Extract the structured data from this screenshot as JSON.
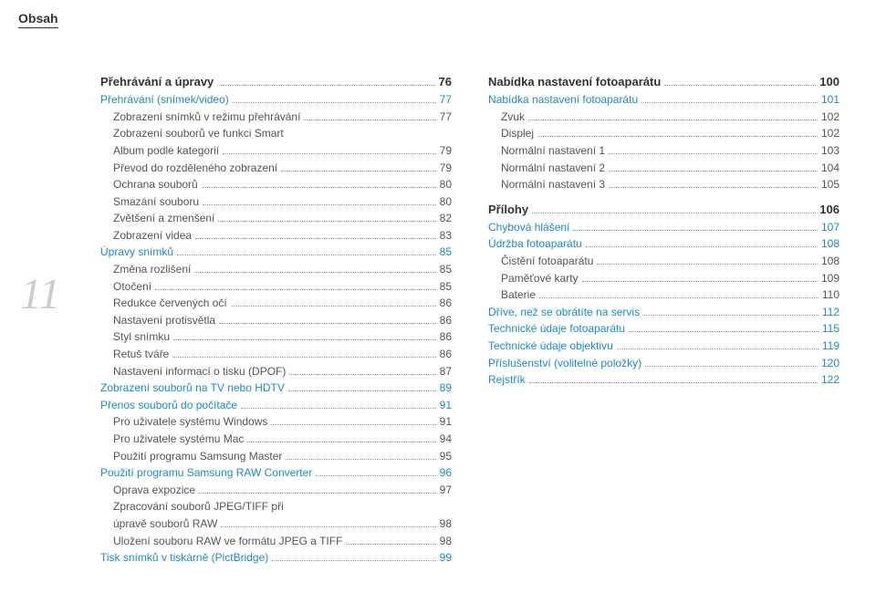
{
  "header": "Obsah",
  "page_number": "11",
  "colors": {
    "header": "#333333",
    "page_number": "#cccccc",
    "level1": "#333333",
    "level2": "#1a8cc8",
    "level3": "#555555",
    "dots": "#999999",
    "background": "#ffffff"
  },
  "left_column": [
    {
      "level": 1,
      "title": "Přehrávání a úpravy",
      "page": "76"
    },
    {
      "level": 2,
      "title": "Přehrávání (snímek/video)",
      "page": "77"
    },
    {
      "level": 3,
      "title": "Zobrazení snímků v režimu přehrávání",
      "page": "77"
    },
    {
      "level": 3,
      "title": "Zobrazení souborů ve funkci Smart",
      "page": ""
    },
    {
      "level": 3,
      "title": "Album podle kategorií",
      "page": "79"
    },
    {
      "level": 3,
      "title": "Převod do rozděleného zobrazení",
      "page": "79"
    },
    {
      "level": 3,
      "title": "Ochrana souborů",
      "page": "80"
    },
    {
      "level": 3,
      "title": "Smazání souboru",
      "page": "80"
    },
    {
      "level": 3,
      "title": "Zvětšení a zmenšení",
      "page": "82"
    },
    {
      "level": 3,
      "title": "Zobrazení videa",
      "page": "83"
    },
    {
      "level": 2,
      "title": "Úpravy snímků",
      "page": "85"
    },
    {
      "level": 3,
      "title": "Změna rozlišení",
      "page": "85"
    },
    {
      "level": 3,
      "title": "Otočení",
      "page": "85"
    },
    {
      "level": 3,
      "title": "Redukce červených očí",
      "page": "86"
    },
    {
      "level": 3,
      "title": "Nastavení protisvětla",
      "page": "86"
    },
    {
      "level": 3,
      "title": "Styl snímku",
      "page": "86"
    },
    {
      "level": 3,
      "title": "Retuš tváře",
      "page": "86"
    },
    {
      "level": 3,
      "title": "Nastavení informací o tisku (DPOF)",
      "page": "87"
    },
    {
      "level": 2,
      "title": "Zobrazení souborů na TV nebo HDTV",
      "page": "89"
    },
    {
      "level": 2,
      "title": "Přenos souborů do počítače",
      "page": "91"
    },
    {
      "level": 3,
      "title": "Pro uživatele systému Windows",
      "page": "91"
    },
    {
      "level": 3,
      "title": "Pro uživatele systému Mac",
      "page": "94"
    },
    {
      "level": 3,
      "title": "Použití programu Samsung Master",
      "page": "95"
    },
    {
      "level": 2,
      "title": "Použití programu Samsung RAW Converter",
      "page": "96"
    },
    {
      "level": 3,
      "title": "Oprava expozice",
      "page": "97"
    },
    {
      "level": 3,
      "title": "Zpracování souborů JPEG/TIFF při",
      "page": ""
    },
    {
      "level": 3,
      "title": "úpravě souborů RAW",
      "page": "98"
    },
    {
      "level": 3,
      "title": "Uložení souboru RAW ve formátu JPEG a TIFF",
      "page": "98"
    },
    {
      "level": 2,
      "title": "Tisk snímků v tiskárně (PictBridge)",
      "page": "99"
    }
  ],
  "right_column": [
    {
      "level": 1,
      "title": "Nabídka nastavení fotoaparátu",
      "page": "100"
    },
    {
      "level": 2,
      "title": "Nabídka nastavení fotoaparátu",
      "page": "101"
    },
    {
      "level": 3,
      "title": "Zvuk",
      "page": "102"
    },
    {
      "level": 3,
      "title": "Displej",
      "page": "102"
    },
    {
      "level": 3,
      "title": "Normální nastavení 1",
      "page": "103"
    },
    {
      "level": 3,
      "title": "Normální nastavení 2",
      "page": "104"
    },
    {
      "level": 3,
      "title": "Normální nastavení 3",
      "page": "105"
    },
    {
      "level": 1,
      "title": "Přílohy",
      "page": "106"
    },
    {
      "level": 2,
      "title": "Chybová hlášení",
      "page": "107"
    },
    {
      "level": 2,
      "title": "Údržba fotoaparátu",
      "page": "108"
    },
    {
      "level": 3,
      "title": "Čistění fotoaparátu",
      "page": "108"
    },
    {
      "level": 3,
      "title": "Paměťové karty",
      "page": "109"
    },
    {
      "level": 3,
      "title": "Baterie",
      "page": "110"
    },
    {
      "level": 2,
      "title": "Dříve, než se obrátíte na servis",
      "page": "112"
    },
    {
      "level": 2,
      "title": "Technické údaje fotoaparátu",
      "page": "115"
    },
    {
      "level": 2,
      "title": "Technické údaje objektivu",
      "page": "119"
    },
    {
      "level": 2,
      "title": "Příslušenství (volitelné položky)",
      "page": "120"
    },
    {
      "level": 2,
      "title": "Rejstřík",
      "page": "122"
    }
  ]
}
